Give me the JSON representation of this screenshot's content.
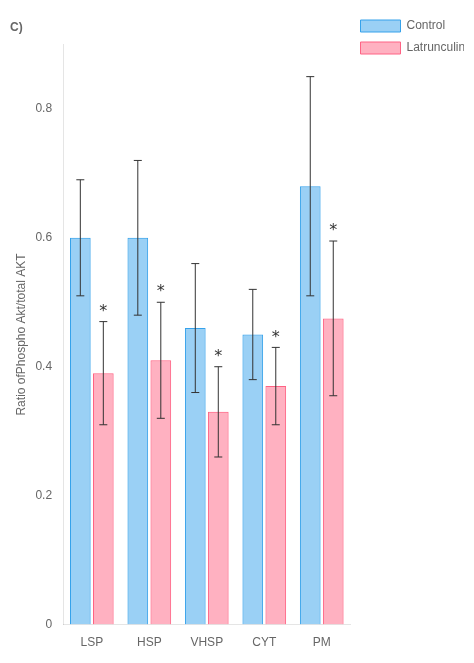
{
  "chart_data": {
    "type": "bar",
    "title": "C)",
    "categories": [
      "LSP",
      "HSP",
      "VHSP",
      "CYT",
      "PM"
    ],
    "series": [
      {
        "name": "Control",
        "values": [
          0.6,
          0.6,
          0.46,
          0.45,
          0.68
        ],
        "errors": [
          0.09,
          0.12,
          0.1,
          0.07,
          0.17
        ]
      },
      {
        "name": "Latrunculin",
        "values": [
          0.39,
          0.41,
          0.33,
          0.37,
          0.475
        ],
        "errors": [
          0.08,
          0.09,
          0.07,
          0.06,
          0.12
        ]
      }
    ],
    "ylabel": "Ratio ofPhospho Akt/total AKT",
    "ylim": [
      0,
      0.9
    ],
    "yticks": [
      0,
      0.2,
      0.4,
      0.6,
      0.8
    ],
    "grid": false,
    "legend": "right",
    "annotations": [
      {
        "category": "LSP",
        "series": "Latrunculin",
        "text": "*"
      },
      {
        "category": "HSP",
        "series": "Latrunculin",
        "text": "*"
      },
      {
        "category": "VHSP",
        "series": "Latrunculin",
        "text": "*"
      },
      {
        "category": "CYT",
        "series": "Latrunculin",
        "text": "*"
      },
      {
        "category": "PM",
        "series": "Latrunculin",
        "text": "*"
      }
    ]
  }
}
